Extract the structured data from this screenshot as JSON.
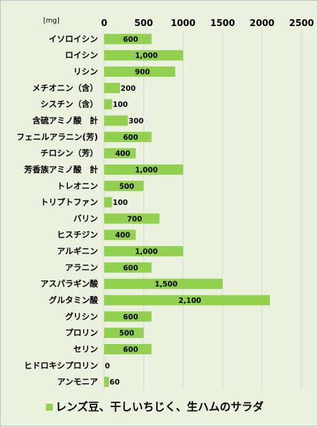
{
  "chart_data": {
    "type": "bar",
    "orientation": "horizontal",
    "unit_label": "[mg]",
    "xlim": [
      0,
      2500
    ],
    "x_ticks": [
      "0",
      "500",
      "1000",
      "1500",
      "2000",
      "2500"
    ],
    "x_tick_values": [
      0,
      500,
      1000,
      1500,
      2000,
      2500
    ],
    "grid": true,
    "legend_position": "bottom",
    "bar_color": "#92d050",
    "categories": [
      "イソロイシン",
      "ロイシン",
      "リシン",
      "メチオニン（含）",
      "シスチン（含）",
      "含硫アミノ酸　計",
      "フェニルアラニン(芳)",
      "チロシン（芳）",
      "芳香族アミノ酸　計",
      "トレオニン",
      "トリプトファン",
      "バリン",
      "ヒスチジン",
      "アルギニン",
      "アラニン",
      "アスパラギン酸",
      "グルタミン酸",
      "グリシン",
      "プロリン",
      "セリン",
      "ヒドロキシプロリン",
      "アンモニア"
    ],
    "series": [
      {
        "name": "レンズ豆、干しいちじく、生ハムのサラダ",
        "values": [
          600,
          1000,
          900,
          200,
          100,
          300,
          600,
          400,
          1000,
          500,
          100,
          700,
          400,
          1000,
          600,
          1500,
          2100,
          600,
          500,
          600,
          0,
          60
        ],
        "labels": [
          "600",
          "1,000",
          "900",
          "200",
          "100",
          "300",
          "600",
          "400",
          "1,000",
          "500",
          "100",
          "700",
          "400",
          "1,000",
          "600",
          "1,500",
          "2,100",
          "600",
          "500",
          "600",
          "0",
          "60"
        ]
      }
    ]
  }
}
